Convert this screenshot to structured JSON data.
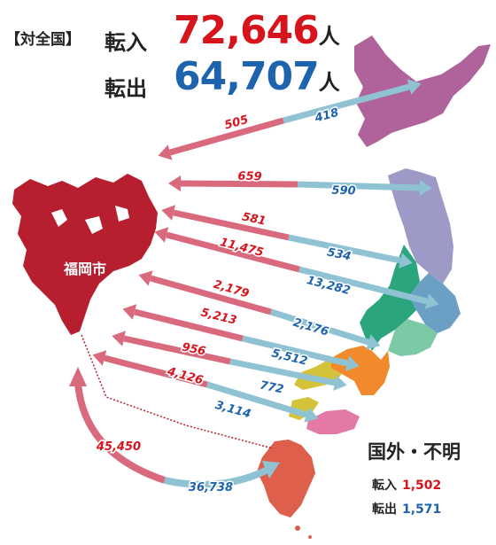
{
  "header": {
    "scope": "【対全国】",
    "in_label": "転入",
    "in_value": "72,646",
    "out_label": "転出",
    "out_value": "64,707",
    "unit": "人"
  },
  "city": {
    "label": "福岡市"
  },
  "flows": [
    {
      "in": "505",
      "out": "418"
    },
    {
      "in": "659",
      "out": "590"
    },
    {
      "in": "581",
      "out": "534"
    },
    {
      "in": "11,475",
      "out": "13,282"
    },
    {
      "in": "2,179",
      "out": "2,176"
    },
    {
      "in": "5,213",
      "out": "5,512"
    },
    {
      "in": "956",
      "out": "772"
    },
    {
      "in": "4,126",
      "out": "3,114"
    },
    {
      "in": "45,450",
      "out": "36,738"
    }
  ],
  "abroad": {
    "title": "国外・不明",
    "in_label": "転入",
    "in_value": "1,502",
    "out_label": "転出",
    "out_value": "1,571"
  },
  "colors": {
    "inflow": "#d96a7e",
    "outflow": "#8fc3d4",
    "in_text": "#d7141b",
    "out_text": "#1e63ad",
    "fukuoka": "#b81f2e",
    "hokkaido": "#b0629b",
    "tohoku": "#9e9ac8",
    "kanto": "#6b9fc3",
    "chubu": "#2aa57e",
    "kinki": "#f08a2c",
    "chugoku": "#d4c33a",
    "shikoku": "#e37aa6",
    "kyushu": "#dd5f4c"
  }
}
